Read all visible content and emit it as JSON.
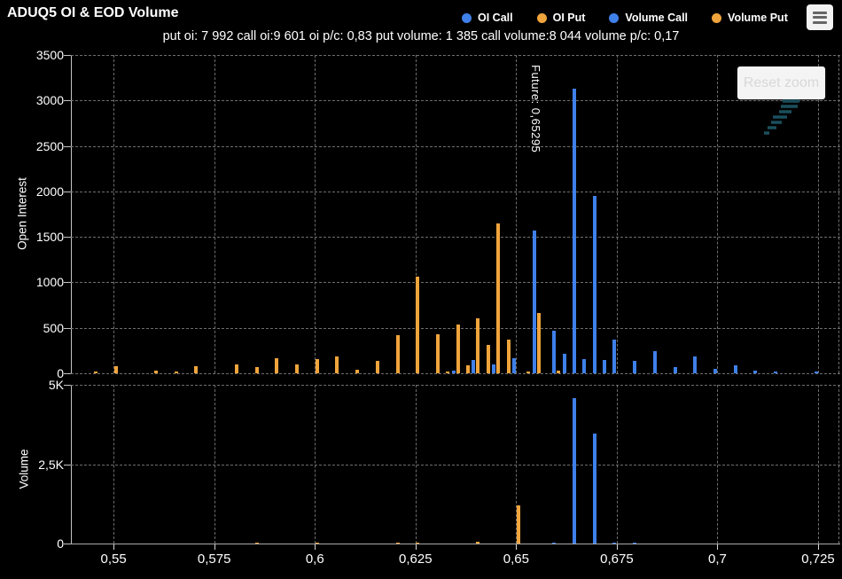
{
  "header": {
    "title": "ADUQ5 OI & EOD Volume",
    "subtitle": "put oi: 7 992 call oi:9 601 oi p/c: 0,83 put volume: 1 385 call volume:8 044 volume p/c: 0,17",
    "legend": [
      {
        "label": "OI Call",
        "color": "#3F80E9"
      },
      {
        "label": "OI Put",
        "color": "#F0A43C"
      },
      {
        "label": "Volume Call",
        "color": "#3F80E9"
      },
      {
        "label": "Volume Put",
        "color": "#F0A43C"
      }
    ]
  },
  "controls": {
    "reset_zoom_label": "Reset zoom",
    "menu_icon": "hamburger-icon"
  },
  "colors": {
    "call": "#3F80E9",
    "put": "#F0A43C",
    "background": "#000000",
    "grid": "#6E6E6E",
    "axis": "#C4C4C4",
    "text": "#FFFFFF",
    "bolt": "#1B4F5C"
  },
  "chart_data": {
    "type": "bar",
    "x_axis": {
      "ticks": [
        0.55,
        0.575,
        0.6,
        0.625,
        0.65,
        0.675,
        0.7,
        0.725
      ],
      "tick_labels": [
        "0,55",
        "0,575",
        "0,6",
        "0,625",
        "0,65",
        "0,675",
        "0,7",
        "0,725"
      ],
      "range": [
        0.5394,
        0.7305
      ],
      "extra_gridlines": [
        0.73
      ]
    },
    "future": {
      "x": 0.65295,
      "label": "Future: 0,65295"
    },
    "panels": [
      {
        "id": "oi",
        "ylabel": "Open Interest",
        "ylim": [
          0,
          3500
        ],
        "yticks": [
          0,
          500,
          1000,
          1500,
          2000,
          2500,
          3000,
          3500
        ],
        "ytick_labels": [
          "0",
          "500",
          "1000",
          "1500",
          "2000",
          "2500",
          "3000",
          "3500"
        ],
        "series": [
          {
            "name": "OI Call",
            "color_key": "call",
            "points": [
              [
                0.635,
                25
              ],
              [
                0.64,
                150
              ],
              [
                0.645,
                95
              ],
              [
                0.65,
                165
              ],
              [
                0.655,
                1570
              ],
              [
                0.66,
                470
              ],
              [
                0.6625,
                215
              ],
              [
                0.665,
                3130
              ],
              [
                0.6675,
                155
              ],
              [
                0.67,
                1950
              ],
              [
                0.6725,
                145
              ],
              [
                0.675,
                370
              ],
              [
                0.68,
                135
              ],
              [
                0.685,
                245
              ],
              [
                0.69,
                70
              ],
              [
                0.695,
                185
              ],
              [
                0.7,
                50
              ],
              [
                0.705,
                90
              ],
              [
                0.71,
                30
              ],
              [
                0.715,
                20
              ],
              [
                0.725,
                15
              ]
            ]
          },
          {
            "name": "OI Put",
            "color_key": "put",
            "points": [
              [
                0.545,
                15
              ],
              [
                0.55,
                75
              ],
              [
                0.56,
                25
              ],
              [
                0.565,
                15
              ],
              [
                0.57,
                80
              ],
              [
                0.58,
                95
              ],
              [
                0.585,
                70
              ],
              [
                0.59,
                165
              ],
              [
                0.595,
                100
              ],
              [
                0.6,
                155
              ],
              [
                0.605,
                185
              ],
              [
                0.61,
                40
              ],
              [
                0.615,
                140
              ],
              [
                0.62,
                420
              ],
              [
                0.625,
                1060
              ],
              [
                0.63,
                430
              ],
              [
                0.6325,
                15
              ],
              [
                0.635,
                535
              ],
              [
                0.6375,
                90
              ],
              [
                0.64,
                600
              ],
              [
                0.6425,
                315
              ],
              [
                0.645,
                1650
              ],
              [
                0.6475,
                370
              ],
              [
                0.6525,
                15
              ],
              [
                0.655,
                660
              ],
              [
                0.66,
                25
              ]
            ]
          }
        ]
      },
      {
        "id": "volume",
        "ylabel": "Volume",
        "ylim": [
          0,
          5000
        ],
        "yticks": [
          0,
          2500,
          5000
        ],
        "ytick_labels": [
          "0",
          "2,5K",
          "5K"
        ],
        "series": [
          {
            "name": "Volume Call",
            "color_key": "call",
            "points": [
              [
                0.66,
                30
              ],
              [
                0.665,
                4580
              ],
              [
                0.67,
                3450
              ],
              [
                0.675,
                30
              ],
              [
                0.68,
                40
              ]
            ]
          },
          {
            "name": "Volume Put",
            "color_key": "put",
            "points": [
              [
                0.585,
                20
              ],
              [
                0.6,
                30
              ],
              [
                0.62,
                40
              ],
              [
                0.625,
                40
              ],
              [
                0.64,
                60
              ],
              [
                0.65,
                1200
              ]
            ]
          }
        ]
      }
    ]
  }
}
